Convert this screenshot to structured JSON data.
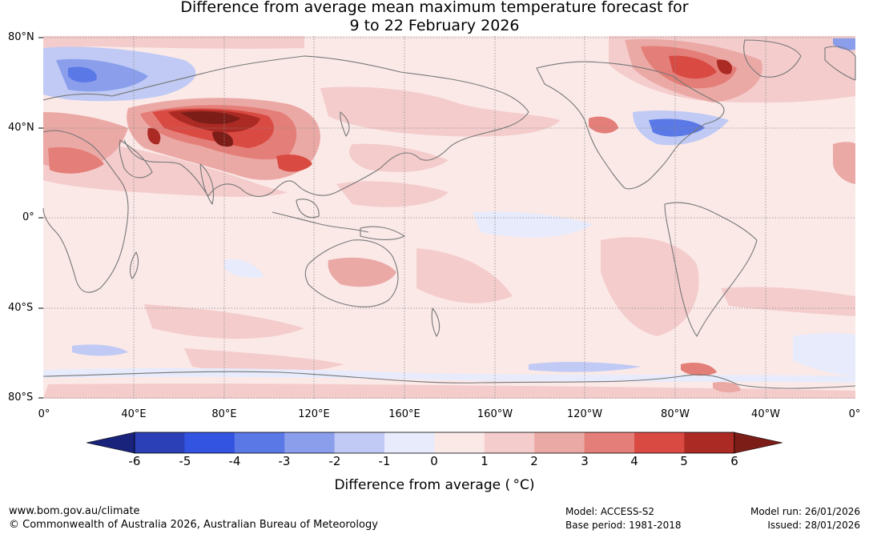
{
  "title": {
    "line1": "Difference from average mean maximum temperature forecast for",
    "line2": "9 to 22 February 2026"
  },
  "map": {
    "lat_labels": [
      "80°N",
      "40°N",
      "0°",
      "40°S",
      "80°S"
    ],
    "lon_labels": [
      "0°",
      "40°E",
      "80°E",
      "120°E",
      "160°E",
      "160°W",
      "120°W",
      "80°W",
      "40°W",
      "0°"
    ],
    "background_color": "#fbe9e8",
    "coast_color": "#777777",
    "grid_color": "#8a8a8a"
  },
  "colorbar": {
    "ticks": [
      "-6",
      "-5",
      "-4",
      "-3",
      "-2",
      "-1",
      "0",
      "1",
      "2",
      "3",
      "4",
      "5",
      "6"
    ],
    "colors": [
      "#19237c",
      "#2b40b6",
      "#3254e0",
      "#5a78e6",
      "#8a9eec",
      "#c0caf4",
      "#e7ebfb",
      "#fbe9e8",
      "#f4cccc",
      "#eba9a5",
      "#e47e78",
      "#d84a42",
      "#ab2a24",
      "#7c1d18"
    ],
    "label": "Difference from average ( °C)"
  },
  "footer": {
    "website": "www.bom.gov.au/climate",
    "copyright": "© Commonwealth of Australia 2026, Australian Bureau of Meteorology",
    "model": "Model: ACCESS-S2",
    "base_period": "Base period: 1981-2018",
    "model_run": "Model run: 26/01/2026",
    "issued": "Issued: 28/01/2026"
  }
}
